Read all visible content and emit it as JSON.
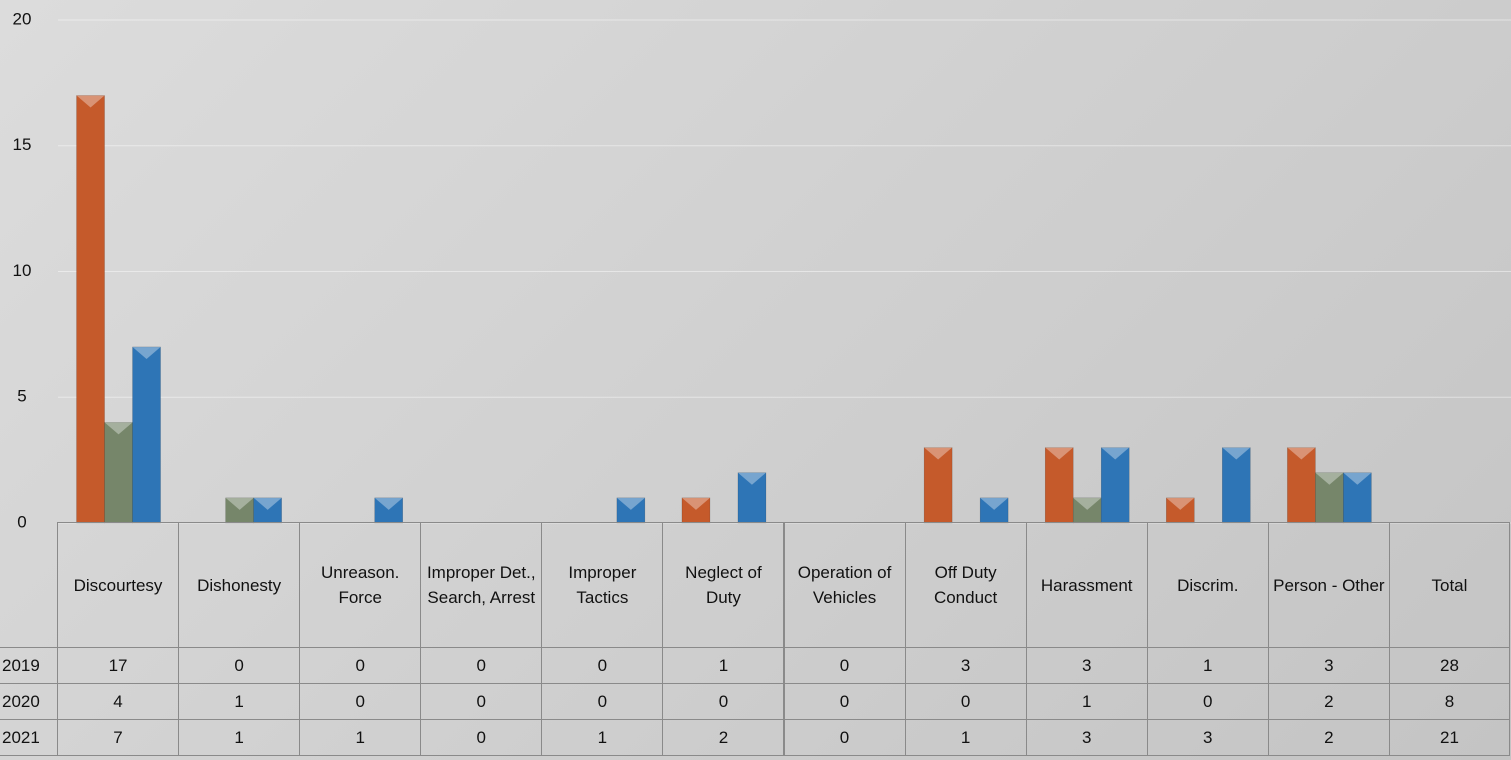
{
  "chart_data": {
    "type": "bar",
    "categories": [
      "Discourtesy",
      "Dishonesty",
      "Unreason. Force",
      "Improper Det., Search, Arrest",
      "Improper Tactics",
      "Neglect of Duty",
      "Operation of Vehicles",
      "Off Duty Conduct",
      "Harassment",
      "Discrim.",
      "Person - Other"
    ],
    "total_label": "Total",
    "series": [
      {
        "name": "2019",
        "color": "#c55a2b",
        "values": [
          17,
          0,
          0,
          0,
          0,
          1,
          0,
          3,
          3,
          1,
          3
        ],
        "total": 28
      },
      {
        "name": "2020",
        "color": "#76866a",
        "values": [
          4,
          1,
          0,
          0,
          0,
          0,
          0,
          0,
          1,
          0,
          2
        ],
        "total": 8
      },
      {
        "name": "2021",
        "color": "#2e75b6",
        "values": [
          7,
          1,
          1,
          0,
          1,
          2,
          0,
          1,
          3,
          3,
          2
        ],
        "total": 21
      }
    ],
    "ylim": [
      0,
      20
    ],
    "yticks": [
      0,
      5,
      10,
      15,
      20
    ],
    "grid": true
  }
}
